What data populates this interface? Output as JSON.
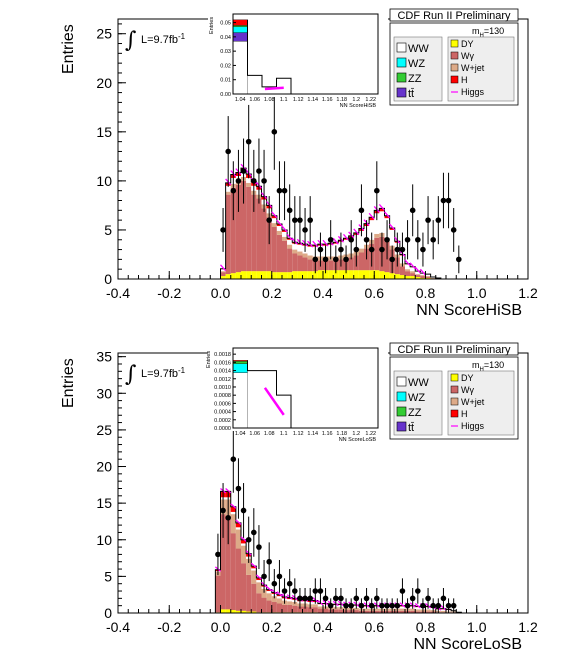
{
  "header": "CDF Run II Preliminary",
  "mass_label": "m",
  "mass_sub": "H",
  "mass_value": "=130",
  "lumi": "L=9.7fb",
  "lumi_sup": "-1",
  "legend_left": [
    "WW",
    "WZ",
    "ZZ",
    "tt̄"
  ],
  "legend_right": [
    "DY",
    "Wγ",
    "W+jet",
    "H",
    "Higgs"
  ],
  "colors": {
    "WW": "#ffffff",
    "WZ": "#00ffff",
    "ZZ": "#33cc33",
    "tt": "#6633cc",
    "DY": "#ffff00",
    "Wg": "#cc6666",
    "Wjet": "#ddaa88",
    "H": "#ff0000",
    "Higgs": "#ff00ff"
  },
  "chart_data": [
    {
      "type": "bar",
      "title": "",
      "xlabel": "NN ScoreHiSB",
      "ylabel": "Entries",
      "xlim": [
        -0.4,
        1.2
      ],
      "ylim": [
        0,
        26.5
      ],
      "xticks": [
        "-0.4",
        "-0.2",
        "0.0",
        "0.2",
        "0.4",
        "0.6",
        "0.8",
        "1.0",
        "1.2"
      ],
      "yticks": [
        "0",
        "5",
        "10",
        "15",
        "20",
        "25"
      ],
      "bin_width": 0.02,
      "bins_start": 0.0,
      "stack": {
        "DY": [
          0.3,
          0.5,
          0.6,
          0.7,
          0.8,
          0.8,
          0.8,
          0.8,
          0.8,
          0.8,
          0.7,
          0.7,
          0.7,
          0.7,
          0.8,
          0.8,
          0.8,
          0.8,
          0.8,
          0.9,
          0.9,
          0.9,
          0.9,
          0.9,
          0.9,
          0.9,
          0.9,
          0.9,
          0.9,
          0.9,
          0.9,
          0.8,
          0.7,
          0.6,
          0.5,
          0.4,
          0.3,
          0.3,
          0.2,
          0.1,
          0.1,
          0.0,
          0.0,
          0.0,
          0.0,
          0.0,
          0.0
        ],
        "Wg": [
          0.4,
          8.1,
          8.7,
          8.9,
          9.2,
          8.6,
          7.8,
          7.4,
          6.4,
          5.5,
          4.6,
          3.8,
          3.2,
          2.4,
          1.8,
          1.6,
          1.4,
          1.2,
          1.1,
          1.0,
          1.0,
          1.0,
          1.0,
          1.1,
          1.2,
          1.3,
          1.5,
          1.8,
          2.2,
          2.7,
          3.3,
          3.5,
          3.1,
          2.4,
          1.7,
          0.9,
          0.5,
          0.3,
          0.2,
          0.2,
          0.1,
          0.0,
          0.0,
          0.0,
          0.0,
          0.0,
          0.0
        ],
        "Wjet": [
          0.1,
          0.3,
          0.4,
          0.4,
          0.4,
          0.4,
          0.4,
          0.4,
          0.4,
          0.4,
          0.4,
          0.4,
          0.4,
          0.4,
          0.4,
          0.4,
          0.4,
          0.4,
          0.4,
          0.4,
          0.4,
          0.4,
          0.4,
          0.4,
          0.4,
          0.4,
          0.4,
          0.4,
          0.4,
          0.4,
          0.4,
          0.4,
          0.4,
          0.4,
          0.3,
          0.3,
          0.2,
          0.2,
          0.1,
          0.1,
          0.1,
          0.1,
          0.0,
          0.0,
          0.0,
          0.0,
          0.0
        ],
        "WW": [
          0.2,
          0.6,
          0.6,
          0.5,
          0.5,
          0.5,
          0.5,
          0.5,
          0.5,
          0.5,
          0.5,
          0.5,
          0.5,
          0.5,
          0.6,
          0.7,
          0.8,
          0.9,
          1.0,
          1.1,
          1.1,
          1.2,
          1.3,
          1.4,
          1.5,
          1.6,
          1.7,
          1.8,
          1.9,
          2.0,
          2.1,
          2.2,
          2.0,
          1.6,
          1.2,
          0.8,
          0.5,
          0.4,
          0.3,
          0.2,
          0.2,
          0.1,
          0.1,
          0.0,
          0.0,
          0.0,
          0.0
        ],
        "H": [
          0.05,
          0.3,
          0.35,
          0.35,
          0.4,
          0.4,
          0.4,
          0.35,
          0.3,
          0.3,
          0.25,
          0.2,
          0.2,
          0.15,
          0.15,
          0.15,
          0.15,
          0.15,
          0.15,
          0.15,
          0.15,
          0.15,
          0.15,
          0.15,
          0.15,
          0.2,
          0.2,
          0.25,
          0.25,
          0.3,
          0.3,
          0.3,
          0.25,
          0.2,
          0.15,
          0.1,
          0.05,
          0.05,
          0.0,
          0.0,
          0.0,
          0.0,
          0.0,
          0.0,
          0.0,
          0.0,
          0.0
        ]
      },
      "data_points": {
        "x": [
          0.01,
          0.03,
          0.05,
          0.07,
          0.09,
          0.11,
          0.13,
          0.15,
          0.17,
          0.19,
          0.21,
          0.23,
          0.25,
          0.27,
          0.29,
          0.31,
          0.33,
          0.35,
          0.37,
          0.39,
          0.41,
          0.43,
          0.45,
          0.47,
          0.49,
          0.51,
          0.53,
          0.55,
          0.57,
          0.59,
          0.61,
          0.63,
          0.65,
          0.67,
          0.69,
          0.71,
          0.73,
          0.75,
          0.77,
          0.79,
          0.81,
          0.83,
          0.85,
          0.87,
          0.89,
          0.91,
          0.93
        ],
        "y": [
          5,
          13,
          9,
          10,
          11,
          14,
          10,
          11,
          10,
          6,
          15,
          9,
          9,
          7,
          6,
          6,
          5,
          6,
          2,
          3,
          2,
          4,
          2,
          3,
          2,
          4,
          3,
          7,
          4,
          3,
          9,
          3,
          4,
          2,
          3,
          3,
          4,
          7,
          4,
          3,
          6,
          4,
          6,
          8,
          8,
          5,
          2
        ]
      }
    },
    {
      "type": "bar",
      "title": "",
      "xlabel": "NN ScoreLoSB",
      "ylabel": "Entries",
      "xlim": [
        -0.4,
        1.2
      ],
      "ylim": [
        0,
        35.5
      ],
      "xticks": [
        "-0.4",
        "-0.2",
        "0.0",
        "0.2",
        "0.4",
        "0.6",
        "0.8",
        "1.0",
        "1.2"
      ],
      "yticks": [
        "0",
        "5",
        "10",
        "15",
        "20",
        "25",
        "30",
        "35"
      ],
      "bin_width": 0.02,
      "bins_start": -0.02,
      "stack": {
        "DY": [
          0.1,
          0.5,
          0.5,
          0.4,
          0.3,
          0.3,
          0.2,
          0.2,
          0.1,
          0.1,
          0.1,
          0.1,
          0.1,
          0.1,
          0.1,
          0.1,
          0.1,
          0.1,
          0.1,
          0.1,
          0.0,
          0.0,
          0.0,
          0.0,
          0.0,
          0.0,
          0.0,
          0.0,
          0.0,
          0.0,
          0.0,
          0.0,
          0.0,
          0.0,
          0.0,
          0.0,
          0.0,
          0.0,
          0.0,
          0.0,
          0.0,
          0.0,
          0.0,
          0.0,
          0.0,
          0.0,
          0.0,
          0.0,
          0.0,
          0.0
        ],
        "Wg": [
          5.0,
          13.0,
          12.5,
          10.5,
          8.5,
          6.5,
          5.0,
          3.8,
          2.6,
          2.0,
          1.6,
          1.4,
          1.2,
          1.0,
          1.0,
          0.9,
          0.8,
          0.8,
          0.7,
          0.7,
          0.6,
          0.6,
          0.5,
          0.5,
          0.5,
          0.4,
          0.4,
          0.4,
          0.3,
          0.3,
          0.3,
          0.3,
          0.3,
          0.3,
          0.3,
          0.3,
          0.3,
          0.3,
          0.3,
          0.2,
          0.2,
          0.2,
          0.2,
          0.1,
          0.1,
          0.1,
          0.1,
          0.0,
          0.0,
          0.0
        ],
        "Wjet": [
          0.5,
          2.0,
          2.5,
          2.6,
          2.6,
          2.4,
          2.2,
          1.8,
          1.5,
          1.2,
          1.0,
          0.8,
          0.7,
          0.6,
          0.5,
          0.5,
          0.4,
          0.4,
          0.4,
          0.4,
          0.3,
          0.3,
          0.3,
          0.3,
          0.3,
          0.3,
          0.3,
          0.3,
          0.3,
          0.3,
          0.3,
          0.3,
          0.3,
          0.3,
          0.3,
          0.3,
          0.3,
          0.3,
          0.3,
          0.3,
          0.3,
          0.3,
          0.2,
          0.2,
          0.2,
          0.1,
          0.1,
          0.0,
          0.0,
          0.0
        ],
        "WW": [
          0.1,
          0.3,
          0.3,
          0.3,
          0.3,
          0.3,
          0.3,
          0.3,
          0.3,
          0.3,
          0.3,
          0.3,
          0.3,
          0.3,
          0.3,
          0.3,
          0.3,
          0.3,
          0.3,
          0.3,
          0.3,
          0.3,
          0.3,
          0.3,
          0.3,
          0.3,
          0.3,
          0.3,
          0.3,
          0.3,
          0.3,
          0.3,
          0.3,
          0.3,
          0.3,
          0.3,
          0.3,
          0.3,
          0.3,
          0.3,
          0.3,
          0.3,
          0.3,
          0.2,
          0.2,
          0.2,
          0.1,
          0.1,
          0.0,
          0.0
        ],
        "H": [
          0.2,
          0.8,
          0.8,
          0.7,
          0.6,
          0.5,
          0.4,
          0.3,
          0.3,
          0.2,
          0.2,
          0.2,
          0.2,
          0.2,
          0.2,
          0.2,
          0.2,
          0.2,
          0.2,
          0.2,
          0.1,
          0.1,
          0.1,
          0.1,
          0.1,
          0.1,
          0.1,
          0.1,
          0.1,
          0.1,
          0.1,
          0.1,
          0.1,
          0.1,
          0.1,
          0.1,
          0.1,
          0.1,
          0.1,
          0.1,
          0.1,
          0.1,
          0.1,
          0.1,
          0.1,
          0.1,
          0.0,
          0.0,
          0.0,
          0.0
        ]
      },
      "data_points": {
        "x": [
          -0.01,
          0.01,
          0.03,
          0.05,
          0.07,
          0.09,
          0.11,
          0.13,
          0.15,
          0.17,
          0.19,
          0.21,
          0.23,
          0.25,
          0.27,
          0.29,
          0.31,
          0.33,
          0.35,
          0.37,
          0.39,
          0.41,
          0.43,
          0.45,
          0.47,
          0.49,
          0.51,
          0.53,
          0.55,
          0.57,
          0.59,
          0.61,
          0.63,
          0.65,
          0.67,
          0.69,
          0.71,
          0.73,
          0.75,
          0.77,
          0.79,
          0.81,
          0.83,
          0.85,
          0.87,
          0.89,
          0.91
        ],
        "y": [
          8,
          14,
          13,
          21,
          17,
          14,
          10,
          11,
          9,
          5,
          7,
          4,
          5,
          3,
          4,
          3,
          2,
          2,
          2,
          3,
          3,
          2,
          1,
          2,
          2,
          1,
          1,
          2,
          1,
          2,
          1,
          2,
          1,
          1,
          1,
          1,
          3,
          1,
          2,
          3,
          1,
          2,
          1,
          1,
          2,
          1,
          1
        ]
      }
    }
  ],
  "insets": [
    {
      "xlabel": "NN ScoreHiSB",
      "ylabel": "Entries",
      "yticks": [
        "0.00",
        "0.01",
        "0.02",
        "0.03",
        "0.04",
        "0.05"
      ],
      "xticks": [
        "1.04",
        "1.06",
        "1.08",
        "1.1",
        "1.12",
        "1.14",
        "1.16",
        "1.18",
        "1.2",
        "1.22"
      ],
      "ylim": [
        0,
        0.056
      ]
    },
    {
      "xlabel": "NN ScoreLoSB",
      "ylabel": "Entries",
      "yticks": [
        "0.0000",
        "0.0002",
        "0.0004",
        "0.0006",
        "0.0008",
        "0.0010",
        "0.0012",
        "0.0014",
        "0.0016",
        "0.0018"
      ],
      "xticks": [
        "1.04",
        "1.06",
        "1.08",
        "1.1",
        "1.12",
        "1.14",
        "1.16",
        "1.18",
        "1.2",
        "1.22"
      ],
      "ylim": [
        0,
        0.00195
      ]
    }
  ]
}
